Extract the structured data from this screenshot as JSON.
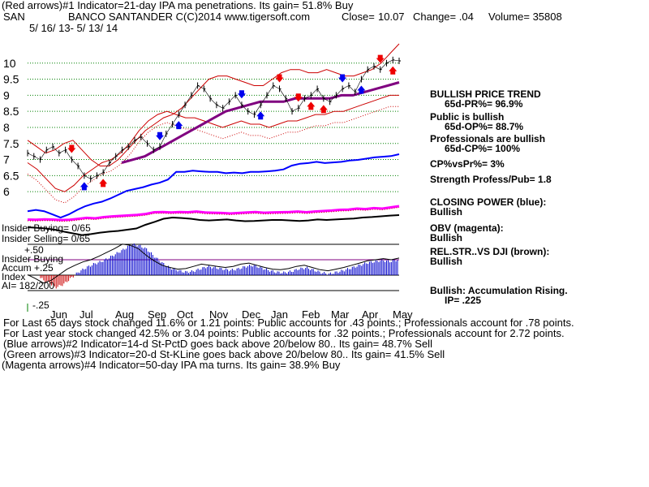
{
  "header": {
    "line1": "(Red arrows)#1 Indicator=21-day IPA ma penetrations. Its gain= 51.8% Buy",
    "ticker": "SAN",
    "company": "BANCO SANTANDER C",
    "copyright": "(C)2014 www.tigersoft.com",
    "close": "Close=",
    "close_value": "10.07",
    "change": "Change= .04",
    "volume": "Volume= 35808",
    "date_range": "5/ 16/ 13- 5/ 13/ 14"
  },
  "right_panel": {
    "trend_title": "BULLISH PRICE TREND",
    "trend_pr": "65d-PR%= 96.9%",
    "public": "Public is bullish",
    "public_op": "65d-OP%= 88.7%",
    "pros": "Professionals are bullish",
    "pros_cp": "65d-CP%= 100%",
    "cp_vs_pr": "CP%vsPr%= 3%",
    "strength": "Strength Profess/Pub= 1.8",
    "closing_power": "CLOSING POWER (blue):",
    "closing_power_state": "Bullish",
    "obv": "OBV (magenta):",
    "obv_state": "Bullish",
    "relstr": "REL.STR..VS DJI (brown):",
    "relstr_state": "Bullish",
    "accum": "Bullish: Accumulation Rising.",
    "ip": "IP= .225"
  },
  "left_labels": {
    "insider_buying": "Insider Buying= 0/65",
    "insider_selling": "Insider Selling= 0/65",
    "insider_buying2": "Insider Buying",
    "accum_label": "Accum",
    "index_label": "Index",
    "ai": "AI= 182/200",
    "plus50": "+.50",
    "plus25": "+.25",
    "minus25": "-.25"
  },
  "footer": [
    "For Last 65 days stock changed  11.6% or  1.21 points:  Public accounts for  .43 points.;  Professionals account for  .78 points.",
    "For Last year stock changed  42.5% or  3.04 points:  Public accounts for  .32 points.;  Professionals account for  2.72 points.",
    "(Blue arrows)#2 Indicator=14-d St-PctD goes back above 20/below 80.. Its gain= 48.7% Sell",
    "(Green arrows)#3 Indicator=20-d St-KLine goes back above 20/below 80.. Its gain= 41.5% Sell",
    "(Magenta arrows)#4 Indicator=50-day IPA ma turns. Its gain= 38.9% Buy"
  ],
  "colors": {
    "price": "#000000",
    "bands": "#cc0000",
    "ma": "#800080",
    "closing_power": "#0000ff",
    "obv": "#ff00ff",
    "relstr": "#000000",
    "accum_pos": "#0000cc",
    "accum_neg": "#cc0000",
    "grid": "#008000"
  },
  "chart_data": {
    "type": "line",
    "ylabels": [
      "10",
      "9.5",
      "9",
      "8.5",
      "8",
      "7.5",
      "7",
      "6.5",
      "6"
    ],
    "yticks": [
      10,
      9.5,
      9,
      8.5,
      8,
      7.5,
      7,
      6.5,
      6
    ],
    "ylim": [
      5.6,
      10.6
    ],
    "months": [
      "Jun",
      "Jul",
      "Aug",
      "Sep",
      "Oct",
      "Nov",
      "Dec",
      "Jan",
      "Feb",
      "Mar",
      "Apr",
      "May"
    ],
    "close_series": [
      7.2,
      7.1,
      7.0,
      7.3,
      7.4,
      7.2,
      7.3,
      7.0,
      6.8,
      6.5,
      6.4,
      6.5,
      6.6,
      6.9,
      7.1,
      7.3,
      7.4,
      7.6,
      7.7,
      7.5,
      7.3,
      7.4,
      7.8,
      8.1,
      8.4,
      8.7,
      9.0,
      9.3,
      9.2,
      8.9,
      8.7,
      8.6,
      8.8,
      9.0,
      8.7,
      8.5,
      8.4,
      8.7,
      9.0,
      9.3,
      9.2,
      8.9,
      8.5,
      8.6,
      8.9,
      9.0,
      9.2,
      8.9,
      8.8,
      9.0,
      9.2,
      9.3,
      9.1,
      9.5,
      9.8,
      9.9,
      9.8,
      10.0,
      10.1,
      10.07
    ],
    "upper_band": [
      7.6,
      7.4,
      7.2,
      7.3,
      7.5,
      7.6,
      7.3,
      7.0,
      6.8,
      6.8,
      7.0,
      7.3,
      7.6,
      7.9,
      8.1,
      8.3,
      8.4,
      8.6,
      8.9,
      9.2,
      9.5,
      9.6,
      9.6,
      9.5,
      9.4,
      9.3,
      9.3,
      9.5,
      9.7,
      9.8,
      9.8,
      9.7,
      9.7,
      9.8,
      9.7,
      9.6,
      9.6,
      9.7,
      9.8,
      10.0,
      10.3,
      10.6
    ],
    "lower_band": [
      6.9,
      6.7,
      6.4,
      6.1,
      6.0,
      6.2,
      6.5,
      6.7,
      6.9,
      7.0,
      7.2,
      7.5,
      7.9,
      8.2,
      8.4,
      8.5,
      8.4,
      8.3,
      8.3,
      8.2,
      8.1,
      8.0,
      8.1,
      8.2,
      8.1,
      8.1,
      8.0,
      8.1,
      8.2,
      8.2,
      8.3,
      8.4,
      8.4,
      8.5,
      8.5,
      8.6,
      8.7,
      8.8,
      8.9,
      9.0,
      9.0
    ],
    "ma_series": [
      6.9,
      7.0,
      7.1,
      7.3,
      7.5,
      7.7,
      7.9,
      8.1,
      8.3,
      8.5,
      8.6,
      8.7,
      8.8,
      8.8,
      8.8,
      8.9,
      8.9,
      8.9,
      8.9,
      9.0,
      9.0,
      9.1,
      9.2,
      9.3,
      9.4
    ],
    "closing_power_series": [
      0.1,
      0.12,
      0.1,
      0.05,
      0.0,
      0.05,
      0.12,
      0.18,
      0.22,
      0.25,
      0.3,
      0.36,
      0.42,
      0.45,
      0.48,
      0.52,
      0.55,
      0.6,
      0.72,
      0.72,
      0.74,
      0.73,
      0.72,
      0.72,
      0.7,
      0.71,
      0.7,
      0.72,
      0.72,
      0.73,
      0.74,
      0.76,
      0.82,
      0.85,
      0.86,
      0.88,
      0.86,
      0.87,
      0.88,
      0.9,
      0.91,
      0.93,
      0.95,
      0.96,
      0.97,
      1.0
    ],
    "obv_series": [
      0.05,
      0.04,
      0.06,
      0.05,
      0.03,
      0.04,
      0.08,
      0.12,
      0.1,
      0.15,
      0.18,
      0.2,
      0.22,
      0.24,
      0.28,
      0.35,
      0.36,
      0.34,
      0.36,
      0.35,
      0.38,
      0.34,
      0.33,
      0.32,
      0.3,
      0.32,
      0.34,
      0.36,
      0.33,
      0.34,
      0.35,
      0.36,
      0.38,
      0.35,
      0.38,
      0.4,
      0.42,
      0.45,
      0.46,
      0.5,
      0.48,
      0.52,
      0.5,
      0.55,
      0.6
    ],
    "relstr_series": [
      0.0,
      -0.02,
      -0.05,
      -0.1,
      -0.18,
      -0.25,
      -0.32,
      -0.28,
      -0.22,
      -0.18,
      -0.15,
      -0.1,
      -0.05,
      0.1,
      0.22,
      0.35,
      0.4,
      0.38,
      0.35,
      0.3,
      0.28,
      0.3,
      0.32,
      0.28,
      0.25,
      0.26,
      0.28,
      0.3,
      0.3,
      0.28,
      0.26,
      0.28,
      0.32,
      0.3,
      0.32,
      0.34,
      0.36,
      0.4,
      0.42,
      0.45,
      0.48,
      0.5
    ],
    "accum_series": [
      -0.05,
      -0.12,
      -0.2,
      -0.15,
      -0.05,
      0.05,
      0.12,
      0.18,
      0.22,
      0.28,
      0.35,
      0.42,
      0.5,
      0.48,
      0.42,
      0.3,
      0.2,
      0.12,
      0.08,
      0.05,
      0.06,
      0.1,
      0.14,
      0.12,
      0.1,
      0.08,
      0.1,
      0.14,
      0.16,
      0.12,
      0.08,
      0.05,
      0.04,
      0.06,
      0.1,
      0.12,
      0.08,
      0.04,
      0.02,
      0.05,
      0.08,
      0.12,
      0.16,
      0.2,
      0.22,
      0.24,
      0.22,
      0.25
    ],
    "accum_lines": [
      0.5,
      0.25,
      0,
      -0.25
    ],
    "arrows": [
      {
        "color": "red",
        "dir": "down",
        "idx": 7
      },
      {
        "color": "red",
        "dir": "up",
        "idx": 12
      },
      {
        "color": "blue",
        "dir": "up",
        "idx": 9
      },
      {
        "color": "blue",
        "dir": "down",
        "idx": 21
      },
      {
        "color": "blue",
        "dir": "up",
        "idx": 24
      },
      {
        "color": "blue",
        "dir": "down",
        "idx": 34
      },
      {
        "color": "blue",
        "dir": "up",
        "idx": 37
      },
      {
        "color": "red",
        "dir": "down",
        "idx": 40
      },
      {
        "color": "red",
        "dir": "down",
        "idx": 43
      },
      {
        "color": "red",
        "dir": "up",
        "idx": 45
      },
      {
        "color": "red",
        "dir": "up",
        "idx": 47
      },
      {
        "color": "blue",
        "dir": "down",
        "idx": 50
      },
      {
        "color": "blue",
        "dir": "up",
        "idx": 53
      },
      {
        "color": "red",
        "dir": "down",
        "idx": 56
      },
      {
        "color": "red",
        "dir": "up",
        "idx": 58
      }
    ]
  }
}
